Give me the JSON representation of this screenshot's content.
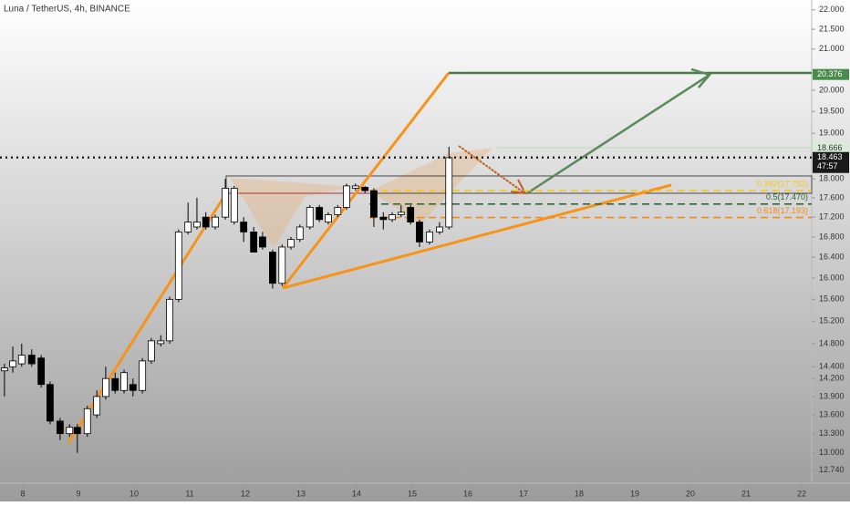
{
  "chart_data": {
    "type": "candlestick",
    "title": "Luna / TetherUS, 4h, BINANCE",
    "log_scale": true,
    "up_color": "#ffffff",
    "down_color": "#000000",
    "x": [
      7.67,
      7.82,
      7.98,
      8.16,
      8.33,
      8.49,
      8.67,
      8.84,
      8.98,
      9.16,
      9.33,
      9.49,
      9.66,
      9.82,
      9.98,
      10.15,
      10.31,
      10.48,
      10.64,
      10.8,
      10.97,
      11.13,
      11.29,
      11.46,
      11.64,
      11.8,
      11.97,
      12.15,
      12.31,
      12.49,
      12.66,
      12.82,
      12.98,
      13.16,
      13.33,
      13.49,
      13.66,
      13.82,
      13.98,
      14.15,
      14.31,
      14.48,
      14.64,
      14.8,
      14.97,
      15.13,
      15.31,
      15.49,
      15.66
    ],
    "open": [
      14.33,
      14.4,
      14.45,
      14.6,
      14.55,
      14.1,
      13.5,
      13.3,
      13.4,
      13.3,
      13.6,
      13.9,
      14.2,
      14.0,
      14.1,
      14.0,
      14.5,
      14.8,
      14.85,
      15.6,
      16.9,
      17.0,
      17.2,
      17.0,
      17.2,
      17.1,
      17.1,
      16.9,
      16.8,
      16.5,
      15.9,
      16.6,
      16.75,
      17.0,
      17.4,
      17.1,
      17.25,
      17.4,
      17.8,
      17.82,
      17.75,
      17.2,
      17.15,
      17.25,
      17.4,
      17.1,
      16.7,
      16.9,
      17.0
    ],
    "high": [
      14.45,
      14.75,
      14.8,
      14.7,
      14.6,
      14.15,
      13.55,
      13.45,
      13.45,
      13.75,
      14.0,
      14.4,
      14.3,
      14.35,
      14.2,
      14.55,
      14.9,
      14.95,
      15.65,
      16.95,
      17.5,
      17.6,
      17.3,
      17.25,
      18.0,
      17.85,
      17.2,
      17.0,
      16.9,
      16.55,
      16.65,
      16.8,
      17.05,
      17.45,
      17.45,
      17.3,
      17.45,
      17.9,
      17.9,
      17.85,
      17.8,
      17.3,
      17.3,
      17.45,
      17.45,
      17.15,
      16.95,
      17.1,
      18.7
    ],
    "low": [
      13.9,
      14.3,
      14.4,
      14.4,
      14.05,
      13.45,
      13.2,
      13.25,
      13.0,
      13.25,
      13.55,
      13.85,
      13.95,
      13.95,
      13.9,
      13.95,
      14.45,
      14.75,
      14.8,
      15.55,
      16.85,
      16.95,
      16.95,
      16.95,
      17.15,
      17.05,
      16.7,
      16.5,
      16.55,
      15.8,
      15.85,
      16.55,
      16.7,
      16.95,
      17.1,
      17.05,
      17.2,
      17.35,
      17.75,
      17.7,
      17.0,
      16.95,
      17.1,
      17.2,
      17.05,
      16.6,
      16.65,
      16.85,
      16.95
    ],
    "close": [
      14.38,
      14.5,
      14.6,
      14.45,
      14.1,
      13.5,
      13.3,
      13.4,
      13.3,
      13.7,
      13.9,
      14.2,
      14.0,
      14.3,
      14.0,
      14.5,
      14.85,
      14.85,
      15.6,
      16.9,
      17.1,
      17.1,
      17.0,
      17.2,
      17.8,
      17.8,
      16.9,
      16.5,
      16.6,
      15.9,
      16.6,
      16.75,
      17.0,
      17.4,
      17.15,
      17.25,
      17.4,
      17.85,
      17.85,
      17.75,
      17.2,
      17.15,
      17.25,
      17.3,
      17.1,
      16.7,
      16.9,
      17.0,
      18.46
    ],
    "xlim": [
      7.59,
      22.18
    ],
    "ylim": [
      12.54,
      22.26
    ],
    "xticks": [
      8,
      9,
      10,
      11,
      12,
      13,
      14,
      15,
      16,
      17,
      18,
      19,
      20,
      21,
      22
    ],
    "yticks": [
      {
        "value": 22,
        "label": "22.000"
      },
      {
        "value": 21.5,
        "label": "21.500"
      },
      {
        "value": 21,
        "label": "21.000"
      },
      {
        "value": 20,
        "label": "20.000"
      },
      {
        "value": 19.5,
        "label": "19.500"
      },
      {
        "value": 19,
        "label": "19.000"
      },
      {
        "value": 18,
        "label": "18.000"
      },
      {
        "value": 17.6,
        "label": "17.600"
      },
      {
        "value": 17.2,
        "label": "17.200"
      },
      {
        "value": 16.8,
        "label": "16.800"
      },
      {
        "value": 16.4,
        "label": "16.400"
      },
      {
        "value": 16,
        "label": "16.000"
      },
      {
        "value": 15.6,
        "label": "15.600"
      },
      {
        "value": 15.2,
        "label": "15.200"
      },
      {
        "value": 14.8,
        "label": "14.800"
      },
      {
        "value": 14.4,
        "label": "14.400"
      },
      {
        "value": 14.2,
        "label": "14.200"
      },
      {
        "value": 13.9,
        "label": "13.900"
      },
      {
        "value": 13.6,
        "label": "13.600"
      },
      {
        "value": 13.3,
        "label": "13.300"
      },
      {
        "value": 13,
        "label": "13.000"
      },
      {
        "value": 12.74,
        "label": "12.740"
      }
    ],
    "fib_levels": [
      {
        "label": "0.382(17.752)",
        "value": 17.752,
        "color": "#f5c518"
      },
      {
        "label": "0.5(17.470)",
        "value": 17.47,
        "color": "#2e6b3a"
      },
      {
        "label": "0.618(17.193)",
        "value": 17.193,
        "color": "#f08a1c"
      }
    ],
    "price_labels": [
      {
        "value": 20.376,
        "color": "#4a8a4a",
        "text_color": "#ffffff"
      },
      {
        "value": 18.666,
        "color": "#d8ecd8",
        "text_color": "#333333"
      },
      {
        "value": 18.463,
        "color": "#1a1a1a",
        "text_color": "#ffffff",
        "countdown": "47:57"
      }
    ]
  }
}
